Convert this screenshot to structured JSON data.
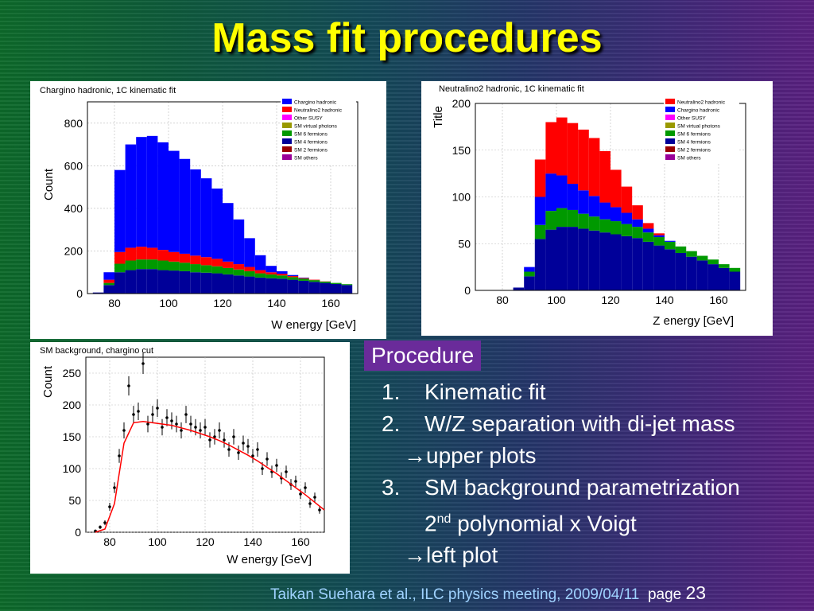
{
  "slide": {
    "title": "Mass fit procedures",
    "procedure_label": "Procedure",
    "items": [
      {
        "num": "1.",
        "text": "Kinematic fit"
      },
      {
        "num": "2.",
        "text": "W/Z separation with di-jet mass"
      },
      {
        "arrow": "→upper plots"
      },
      {
        "num": "3.",
        "text": "SM background parametrization"
      },
      {
        "indent_prefix": "2",
        "sup": "nd",
        "indent_suffix": " polynomial x Voigt"
      },
      {
        "arrow": "→left plot"
      }
    ],
    "footer": {
      "credit": "Taikan Suehara et al., ILC physics meeting, 2009/04/11",
      "page_label": "page",
      "page_number": "23"
    }
  },
  "colors": {
    "title": "#ffff00",
    "chargino": "#0000ff",
    "neutralino2": "#ff0000",
    "other_susy": "#ff00ff",
    "sm_virtual_photons": "#999900",
    "sm6": "#009900",
    "sm4": "#000099",
    "sm2": "#990000",
    "smothers": "#990099",
    "fit_line": "#ff0000"
  },
  "chart_data": [
    {
      "type": "bar",
      "title": "Chargino hadronic, 1C kinematic fit",
      "xlabel": "W energy [GeV]",
      "ylabel": "Count",
      "xlim": [
        70,
        170
      ],
      "ylim": [
        0,
        900
      ],
      "xticks": [
        80,
        100,
        120,
        140,
        160
      ],
      "yticks": [
        0,
        200,
        400,
        600,
        800
      ],
      "legend_position": "top-right",
      "legend": [
        "Chargino hadronic",
        "Neutralino2 hadronic",
        "Other SUSY",
        "SM virtual photons",
        "SM 6 fermions",
        "SM 4 fermions",
        "SM 2 fermions",
        "SM others"
      ],
      "x": [
        74,
        78,
        82,
        86,
        90,
        94,
        98,
        102,
        106,
        110,
        114,
        118,
        122,
        126,
        130,
        134,
        138,
        142,
        146,
        150,
        154,
        158,
        162,
        166
      ],
      "series": [
        {
          "name": "SM 4 fermions",
          "values": [
            5,
            40,
            100,
            110,
            115,
            115,
            110,
            108,
            105,
            100,
            98,
            95,
            90,
            85,
            80,
            75,
            72,
            70,
            65,
            60,
            55,
            50,
            45,
            40
          ]
        },
        {
          "name": "SM 6 fermions",
          "values": [
            0,
            10,
            40,
            45,
            45,
            45,
            45,
            42,
            40,
            38,
            35,
            33,
            30,
            28,
            25,
            20,
            18,
            15,
            12,
            10,
            8,
            6,
            5,
            4
          ]
        },
        {
          "name": "Neutralino2 hadronic",
          "values": [
            0,
            15,
            55,
            60,
            60,
            55,
            50,
            45,
            42,
            40,
            38,
            35,
            30,
            25,
            20,
            15,
            10,
            8,
            5,
            3,
            2,
            1,
            0,
            0
          ]
        },
        {
          "name": "Chargino hadronic",
          "values": [
            0,
            35,
            385,
            485,
            515,
            525,
            505,
            475,
            445,
            405,
            370,
            330,
            275,
            210,
            135,
            70,
            30,
            12,
            5,
            2,
            0,
            0,
            0,
            0
          ]
        }
      ]
    },
    {
      "type": "bar",
      "title": "Neutralino2 hadronic, 1C kinematic fit",
      "xlabel": "Z energy [GeV]",
      "ylabel": "Title",
      "xlim": [
        70,
        170
      ],
      "ylim": [
        0,
        200
      ],
      "xticks": [
        80,
        100,
        120,
        140,
        160
      ],
      "yticks": [
        0,
        50,
        100,
        150,
        200
      ],
      "legend_position": "top-right",
      "legend": [
        "Neutralino2 hadronic",
        "Chargino hadronic",
        "Other SUSY",
        "SM virtual photons",
        "SM 6 fermions",
        "SM 4 fermions",
        "SM 2 fermions",
        "SM others"
      ],
      "x": [
        74,
        78,
        82,
        86,
        90,
        94,
        98,
        102,
        106,
        110,
        114,
        118,
        122,
        126,
        130,
        134,
        138,
        142,
        146,
        150,
        154,
        158,
        162,
        166
      ],
      "series": [
        {
          "name": "SM 4 fermions",
          "values": [
            0,
            0,
            0,
            3,
            15,
            55,
            65,
            68,
            68,
            66,
            64,
            62,
            60,
            58,
            56,
            52,
            48,
            44,
            40,
            36,
            32,
            28,
            24,
            20
          ]
        },
        {
          "name": "SM 6 fermions",
          "values": [
            0,
            0,
            0,
            0,
            5,
            15,
            20,
            20,
            18,
            16,
            15,
            14,
            14,
            13,
            12,
            10,
            9,
            8,
            7,
            6,
            5,
            5,
            4,
            4
          ]
        },
        {
          "name": "Chargino hadronic",
          "values": [
            0,
            0,
            0,
            0,
            5,
            30,
            40,
            35,
            28,
            25,
            22,
            18,
            15,
            12,
            8,
            4,
            2,
            1,
            0,
            0,
            0,
            0,
            0,
            0
          ]
        },
        {
          "name": "Neutralino2 hadronic",
          "values": [
            0,
            0,
            0,
            0,
            0,
            40,
            55,
            62,
            65,
            65,
            62,
            55,
            40,
            28,
            15,
            6,
            2,
            0,
            0,
            0,
            0,
            0,
            0,
            0
          ]
        }
      ]
    },
    {
      "type": "scatter",
      "title": "SM background, chargino cut",
      "xlabel": "W energy [GeV]",
      "ylabel": "Count",
      "xlim": [
        70,
        170
      ],
      "ylim": [
        0,
        275
      ],
      "xticks": [
        80,
        100,
        120,
        140,
        160
      ],
      "yticks": [
        0,
        50,
        100,
        150,
        200,
        250
      ],
      "points": [
        [
          74,
          2
        ],
        [
          76,
          8
        ],
        [
          78,
          15
        ],
        [
          80,
          40
        ],
        [
          82,
          70
        ],
        [
          84,
          120
        ],
        [
          86,
          160
        ],
        [
          88,
          230
        ],
        [
          90,
          185
        ],
        [
          92,
          190
        ],
        [
          94,
          265
        ],
        [
          96,
          170
        ],
        [
          98,
          185
        ],
        [
          100,
          195
        ],
        [
          102,
          165
        ],
        [
          104,
          180
        ],
        [
          106,
          175
        ],
        [
          108,
          170
        ],
        [
          110,
          160
        ],
        [
          112,
          185
        ],
        [
          114,
          170
        ],
        [
          116,
          165
        ],
        [
          118,
          160
        ],
        [
          120,
          165
        ],
        [
          122,
          145
        ],
        [
          124,
          150
        ],
        [
          126,
          160
        ],
        [
          128,
          145
        ],
        [
          130,
          130
        ],
        [
          132,
          150
        ],
        [
          134,
          125
        ],
        [
          136,
          140
        ],
        [
          138,
          135
        ],
        [
          140,
          120
        ],
        [
          142,
          130
        ],
        [
          144,
          100
        ],
        [
          146,
          115
        ],
        [
          148,
          95
        ],
        [
          150,
          105
        ],
        [
          152,
          85
        ],
        [
          154,
          95
        ],
        [
          156,
          75
        ],
        [
          158,
          80
        ],
        [
          160,
          60
        ],
        [
          162,
          70
        ],
        [
          164,
          45
        ],
        [
          166,
          55
        ],
        [
          168,
          35
        ]
      ],
      "fit": {
        "name": "2nd polynomial x Voigt",
        "x": [
          74,
          78,
          82,
          86,
          90,
          94,
          98,
          102,
          106,
          110,
          114,
          118,
          122,
          126,
          130,
          134,
          138,
          142,
          146,
          150,
          154,
          158,
          162,
          166,
          170
        ],
        "y": [
          0,
          5,
          45,
          140,
          172,
          174,
          172,
          170,
          168,
          164,
          160,
          155,
          150,
          144,
          137,
          129,
          121,
          112,
          102,
          92,
          81,
          70,
          59,
          47,
          35
        ]
      }
    }
  ]
}
